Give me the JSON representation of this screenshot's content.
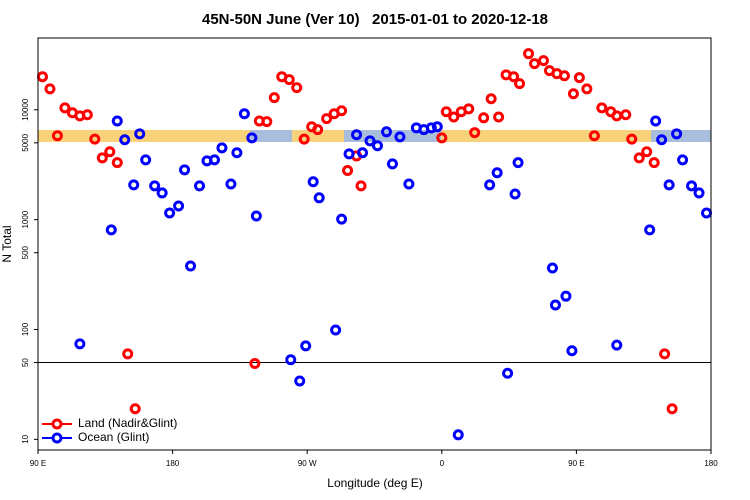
{
  "chart_data": {
    "type": "scatter",
    "title": "45N-50N June (Ver 10)   2015-01-01 to 2020-12-18",
    "xlabel": "Longitude (deg E)",
    "ylabel": "N Total",
    "log_y": true,
    "legend": "lower left",
    "xlim": [
      90,
      540
    ],
    "xticks": [
      {
        "value": 90,
        "label": "90 E"
      },
      180,
      {
        "value": 270,
        "label": "90 W"
      },
      {
        "value": 360,
        "label": "0"
      },
      {
        "value": 450,
        "label": "90 E"
      },
      {
        "value": 540,
        "label": "180"
      }
    ],
    "ylim": [
      8,
      45000
    ],
    "yticks": [
      10,
      50,
      100,
      500,
      1000,
      5000,
      10000
    ],
    "hline": 50,
    "series": [
      {
        "name": "Land (Nadir&Glint)",
        "color": "#ff0000",
        "x": [
          93,
          98,
          103,
          108,
          113,
          118,
          123,
          128,
          133,
          138,
          143,
          150,
          155,
          235,
          238,
          243,
          248,
          253,
          258,
          263,
          268,
          273,
          277,
          283,
          288,
          293,
          297,
          303,
          306,
          360,
          363,
          368,
          373,
          378,
          382,
          388,
          393,
          398,
          403,
          408,
          412,
          418,
          422,
          428,
          432,
          437,
          442,
          448,
          452,
          457,
          462,
          467,
          473,
          477,
          483,
          487,
          492,
          497,
          502,
          509,
          514
        ],
        "values": [
          20000,
          15500,
          5800,
          10400,
          9400,
          8800,
          9000,
          5400,
          3650,
          4150,
          3300,
          60,
          19,
          49,
          7900,
          7800,
          12900,
          20000,
          18800,
          15900,
          5400,
          7000,
          6600,
          8300,
          9200,
          9800,
          2800,
          3800,
          2030,
          5550,
          9600,
          8600,
          9600,
          10200,
          6200,
          8450,
          12600,
          8600,
          20800,
          20000,
          17300,
          32400,
          26300,
          28000,
          22700,
          21300,
          20400,
          14000,
          19600,
          15500,
          5800,
          10400,
          9600,
          8800,
          9000,
          5400,
          3650,
          4150,
          3300,
          60,
          19
        ]
      },
      {
        "name": "Ocean (Glint)",
        "color": "#0000ff",
        "x": [
          118,
          139,
          143,
          148,
          154,
          158,
          162,
          168,
          173,
          178,
          184,
          188,
          192,
          198,
          203,
          208,
          213,
          219,
          223,
          228,
          233,
          236,
          259,
          265,
          269,
          274,
          278,
          289,
          293,
          298,
          303,
          307,
          312,
          317,
          323,
          327,
          332,
          338,
          343,
          348,
          353,
          357,
          371,
          392,
          397,
          404,
          409,
          411,
          434,
          436,
          443,
          447,
          477,
          499,
          503,
          507,
          512,
          517,
          521,
          527,
          532,
          537
        ],
        "values": [
          74,
          806,
          7900,
          5330,
          2070,
          6040,
          3500,
          2030,
          1750,
          1150,
          1330,
          2840,
          378,
          2030,
          3430,
          3500,
          4500,
          2110,
          4060,
          9200,
          5550,
          1080,
          53,
          34,
          71,
          2210,
          1580,
          99,
          1010,
          3970,
          5920,
          4060,
          5210,
          4700,
          6300,
          3220,
          5670,
          2110,
          6850,
          6600,
          6850,
          7000,
          11,
          2070,
          2670,
          40,
          1710,
          3300,
          363,
          167,
          201,
          64,
          72,
          806,
          7900,
          5330,
          2070,
          6040,
          3500,
          2030,
          1750,
          1150
        ]
      }
    ]
  }
}
